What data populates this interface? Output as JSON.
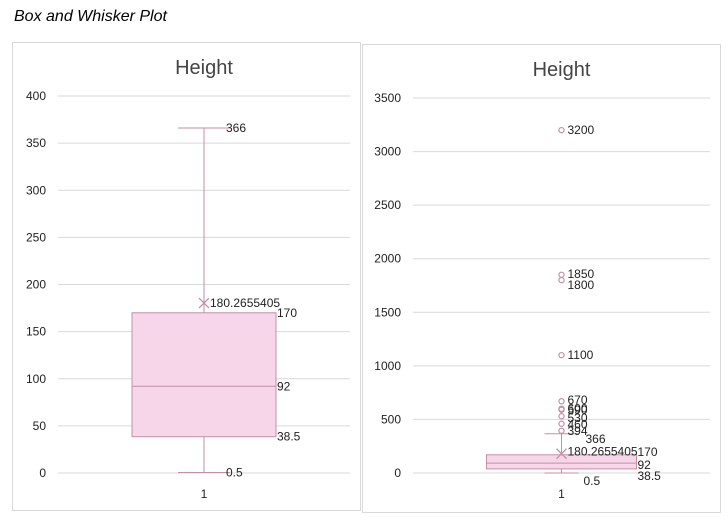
{
  "page_title": "Box and Whisker Plot",
  "colors": {
    "box_fill": "#f7d6e9",
    "box_stroke": "#c48fa5",
    "grid": "#d9d9d9",
    "axis_text": "#222222",
    "title_text": "#444444"
  },
  "chart_data": [
    {
      "type": "box",
      "title": "Height",
      "categories": [
        "1"
      ],
      "ylim": [
        0,
        400
      ],
      "yticks": [
        0,
        50,
        100,
        150,
        200,
        250,
        300,
        350,
        400
      ],
      "grid": true,
      "whisker_min": 0.5,
      "q1": 38.5,
      "median": 92,
      "q3": 170,
      "whisker_max": 366,
      "mean": 180.2655405,
      "outliers": [],
      "data_labels": [
        {
          "value": 366,
          "text": "366"
        },
        {
          "value": 180.2655405,
          "text": "180.2655405"
        },
        {
          "value": 170,
          "text": "170"
        },
        {
          "value": 92,
          "text": "92"
        },
        {
          "value": 38.5,
          "text": "38.5"
        },
        {
          "value": 0.5,
          "text": "0.5"
        }
      ]
    },
    {
      "type": "box",
      "title": "Height",
      "categories": [
        "1"
      ],
      "ylim": [
        0,
        3500
      ],
      "yticks": [
        0,
        500,
        1000,
        1500,
        2000,
        2500,
        3000,
        3500
      ],
      "grid": true,
      "whisker_min": 0.5,
      "q1": 38.5,
      "median": 92,
      "q3": 170,
      "whisker_max": 366,
      "mean": 180.2655405,
      "outliers": [
        3200,
        1850,
        1800,
        1100,
        670,
        600,
        590,
        530,
        460,
        394
      ],
      "data_labels": [
        {
          "value": 3200,
          "text": "3200"
        },
        {
          "value": 1850,
          "text": "1850"
        },
        {
          "value": 1800,
          "text": "1800"
        },
        {
          "value": 1100,
          "text": "1100"
        },
        {
          "value": 670,
          "text": "670"
        },
        {
          "value": 600,
          "text": "600"
        },
        {
          "value": 590,
          "text": "590"
        },
        {
          "value": 530,
          "text": "530"
        },
        {
          "value": 460,
          "text": "460"
        },
        {
          "value": 394,
          "text": "394"
        },
        {
          "value": 366,
          "text": "366"
        },
        {
          "value": 180.2655405,
          "text": "180.2655405"
        },
        {
          "value": 170,
          "text": "170"
        },
        {
          "value": 92,
          "text": "92"
        },
        {
          "value": 38.5,
          "text": "38.5"
        },
        {
          "value": 0.5,
          "text": "0.5"
        }
      ]
    }
  ]
}
